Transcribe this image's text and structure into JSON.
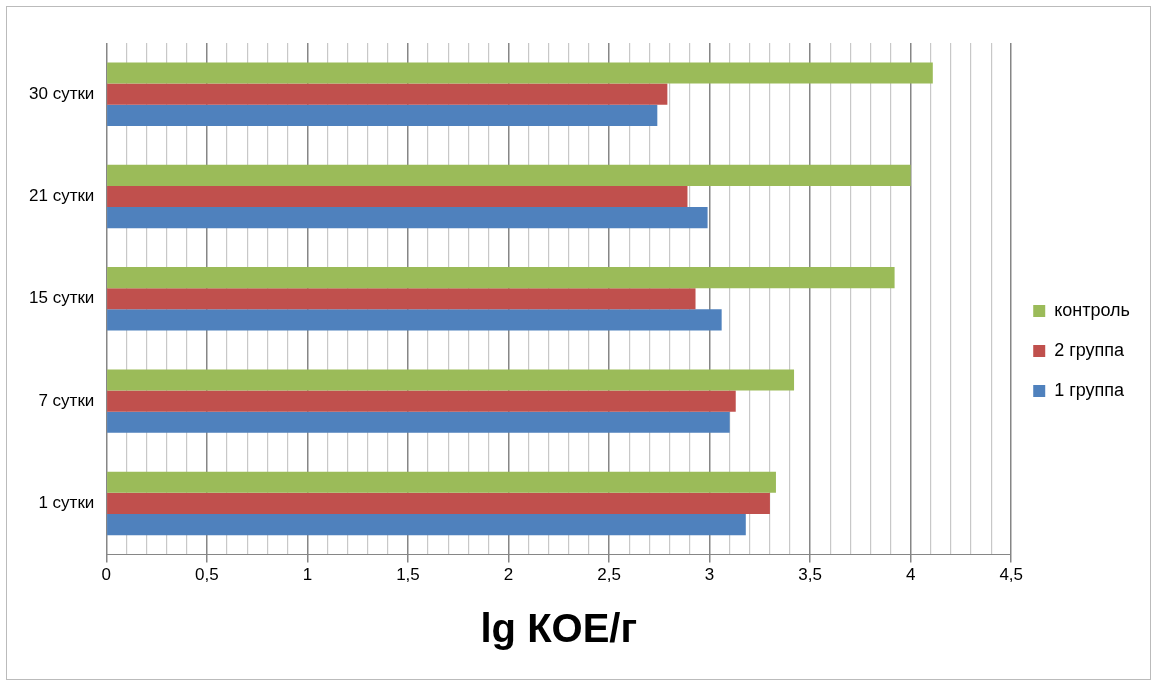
{
  "chart_data": {
    "type": "bar",
    "orientation": "horizontal",
    "xlabel": "lg КОЕ/г",
    "categories": [
      "30 сутки",
      "21 сутки",
      "15 сутки",
      "7 сутки",
      "1 сутки"
    ],
    "series": [
      {
        "name": "контроль",
        "color": "#9bbb59",
        "values": [
          4.11,
          4.0,
          3.92,
          3.42,
          3.33
        ]
      },
      {
        "name": "2 группа",
        "color": "#c0504d",
        "values": [
          2.79,
          2.89,
          2.93,
          3.13,
          3.3
        ]
      },
      {
        "name": "1 группа",
        "color": "#4f81bd",
        "values": [
          2.74,
          2.99,
          3.06,
          3.1,
          3.18
        ]
      }
    ],
    "xlim": [
      0,
      4.5
    ],
    "xticks": [
      0,
      {
        "value": 0.1,
        "label": null
      },
      {
        "value": 0.2,
        "label": null
      },
      {
        "value": 0.3,
        "label": null
      },
      {
        "value": 0.4,
        "label": null
      },
      {
        "value": 0.5,
        "label": "0,5"
      },
      {
        "value": 0.6,
        "label": null
      },
      {
        "value": 0.7,
        "label": null
      },
      {
        "value": 0.8,
        "label": null
      },
      {
        "value": 0.9,
        "label": null
      },
      1,
      {
        "value": 1.1,
        "label": null
      },
      {
        "value": 1.2,
        "label": null
      },
      {
        "value": 1.3,
        "label": null
      },
      {
        "value": 1.4,
        "label": null
      },
      {
        "value": 1.5,
        "label": "1,5"
      },
      {
        "value": 1.6,
        "label": null
      },
      {
        "value": 1.7,
        "label": null
      },
      {
        "value": 1.8,
        "label": null
      },
      {
        "value": 1.9,
        "label": null
      },
      2,
      {
        "value": 2.1,
        "label": null
      },
      {
        "value": 2.2,
        "label": null
      },
      {
        "value": 2.3,
        "label": null
      },
      {
        "value": 2.4,
        "label": null
      },
      {
        "value": 2.5,
        "label": "2,5"
      },
      {
        "value": 2.6,
        "label": null
      },
      {
        "value": 2.7,
        "label": null
      },
      {
        "value": 2.8,
        "label": null
      },
      {
        "value": 2.9,
        "label": null
      },
      3,
      {
        "value": 3.1,
        "label": null
      },
      {
        "value": 3.2,
        "label": null
      },
      {
        "value": 3.3,
        "label": null
      },
      {
        "value": 3.4,
        "label": null
      },
      {
        "value": 3.5,
        "label": "3,5"
      },
      {
        "value": 3.6,
        "label": null
      },
      {
        "value": 3.7,
        "label": null
      },
      {
        "value": 3.8,
        "label": null
      },
      {
        "value": 3.9,
        "label": null
      },
      4,
      {
        "value": 4.1,
        "label": null
      },
      {
        "value": 4.2,
        "label": null
      },
      {
        "value": 4.3,
        "label": null
      },
      {
        "value": 4.4,
        "label": null
      },
      {
        "value": 4.5,
        "label": "4,5"
      }
    ],
    "grid": "x",
    "legend": "right"
  }
}
